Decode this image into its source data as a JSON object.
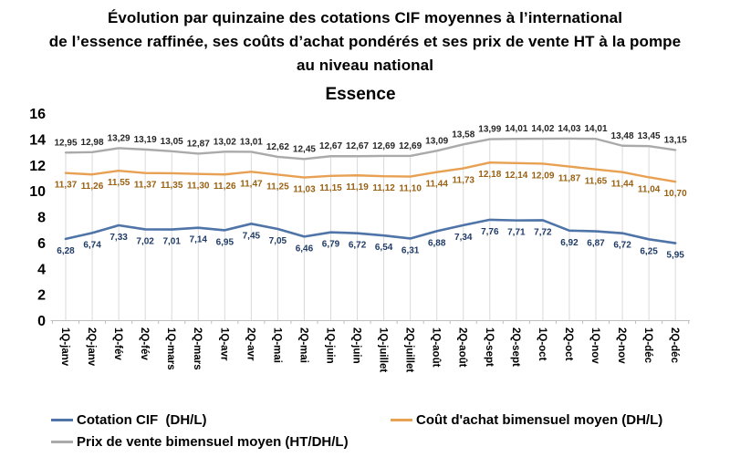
{
  "title": {
    "line1": "Évolution par quinzaine des cotations CIF moyennes à l’international",
    "line2": "de l’essence raffinée, ses coûts d’achat pondérés et ses prix de vente HT à la pompe",
    "line3": "au niveau national"
  },
  "chart_data": {
    "type": "line",
    "title": "Essence",
    "xlabel": "",
    "ylabel": "",
    "ylim": [
      0,
      16
    ],
    "yticks": [
      0,
      2,
      4,
      6,
      8,
      10,
      12,
      14,
      16
    ],
    "grid": "drop-lines-from-top-series",
    "legend_position": "bottom-left",
    "decimal_separator": ",",
    "categories": [
      "1Q-janv",
      "2Q-janv",
      "1Q-fév",
      "2Q-fév",
      "1Q-mars",
      "2Q-mars",
      "1Q-avr",
      "2Q-avr",
      "1Q-mai",
      "2Q-mai",
      "1Q-juin",
      "2Q-juin",
      "1Q-juillet",
      "2Q-juillet",
      "1Q-août",
      "2Q-août",
      "1Q-sept",
      "2Q-sept",
      "1Q-oct",
      "2Q-oct",
      "1Q-nov",
      "2Q-nov",
      "1Q-déc",
      "2Q-déc"
    ],
    "series": [
      {
        "name": "Cotation CIF  (DH/L)",
        "color": "#4f74a8",
        "label_color": "#1f3b66",
        "label_position": "below",
        "values": [
          6.28,
          6.74,
          7.33,
          7.02,
          7.01,
          7.14,
          6.95,
          7.45,
          7.05,
          6.46,
          6.79,
          6.72,
          6.54,
          6.31,
          6.88,
          7.34,
          7.76,
          7.71,
          7.72,
          6.92,
          6.87,
          6.72,
          6.25,
          5.95
        ]
      },
      {
        "name": "Coût d'achat bimensuel moyen (DH/L)",
        "color": "#e8a052",
        "label_color": "#9a6112",
        "label_position": "below",
        "values": [
          11.37,
          11.26,
          11.55,
          11.37,
          11.35,
          11.3,
          11.26,
          11.47,
          11.25,
          11.03,
          11.15,
          11.19,
          11.12,
          11.1,
          11.44,
          11.73,
          12.18,
          12.14,
          12.09,
          11.87,
          11.65,
          11.44,
          11.04,
          10.7
        ]
      },
      {
        "name": "Prix de vente bimensuel moyen (HT/DH/L)",
        "color": "#aaaaaa",
        "label_color": "#262626",
        "label_position": "above",
        "values": [
          12.95,
          12.98,
          13.29,
          13.19,
          13.05,
          12.87,
          13.02,
          13.01,
          12.62,
          12.45,
          12.67,
          12.67,
          12.69,
          12.69,
          13.09,
          13.58,
          13.99,
          14.01,
          14.02,
          14.03,
          14.01,
          13.48,
          13.45,
          13.15
        ]
      }
    ],
    "colors": {
      "drop_line": "#d9d9d9",
      "axis": "#bfbfbf",
      "text": "#000000",
      "background": "#ffffff"
    }
  }
}
